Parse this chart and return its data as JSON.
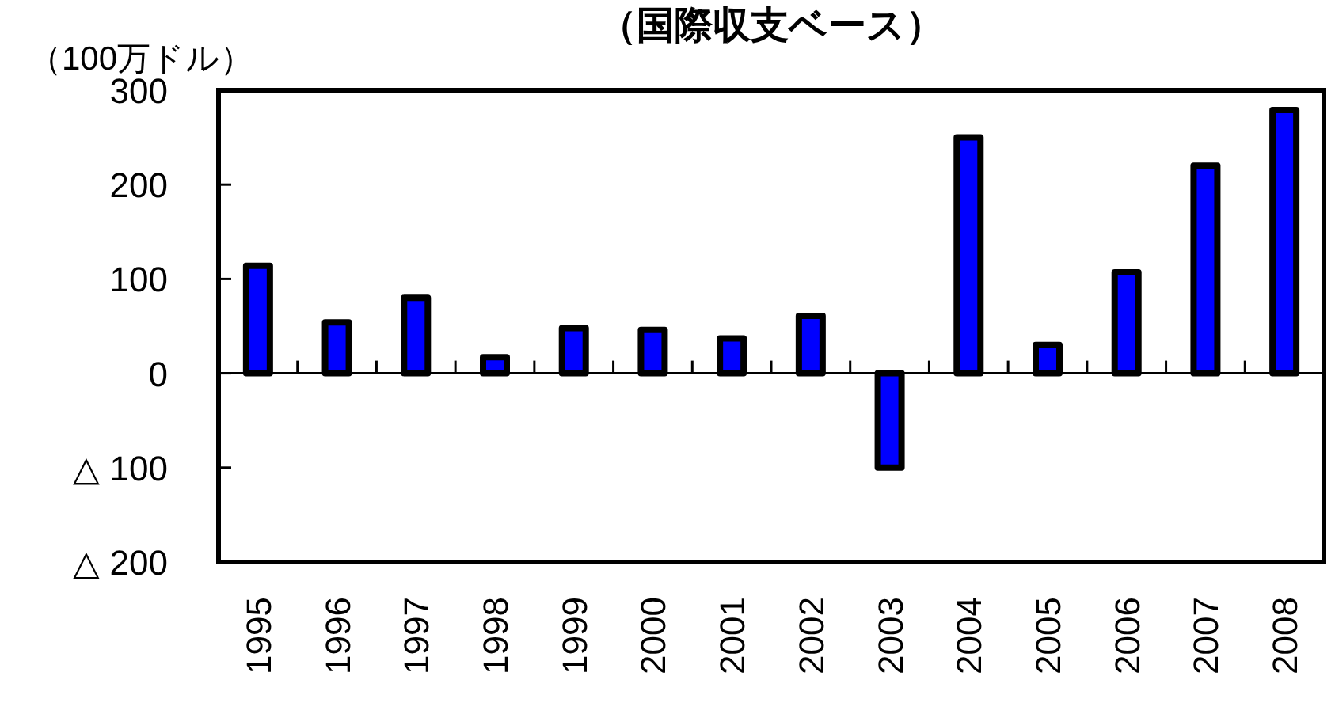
{
  "chart_data": {
    "type": "bar",
    "title": "（国際収支ベース）",
    "ylabel": "（100万ドル）",
    "categories": [
      "1995",
      "1996",
      "1997",
      "1998",
      "1999",
      "2000",
      "2001",
      "2002",
      "2003",
      "2004",
      "2005",
      "2006",
      "2007",
      "2008"
    ],
    "values": [
      114,
      54,
      80,
      17,
      48,
      46,
      37,
      61,
      -100,
      250,
      30,
      107,
      220,
      279
    ],
    "color": "#0000ff",
    "ylim": [
      -200,
      300
    ],
    "yticks": [
      {
        "value": -200,
        "label": "△ 200"
      },
      {
        "value": -100,
        "label": "△ 100"
      },
      0,
      100,
      200,
      300
    ]
  }
}
